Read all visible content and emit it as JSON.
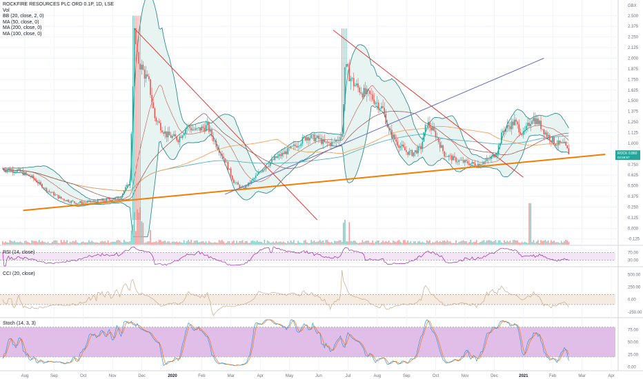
{
  "legend": {
    "title": "ROCKFIRE RESOURCES PLC ORD 0.1P, 1D, LSE",
    "vol": "Vol",
    "bb": "BB (20, close, 2, 0)",
    "ma50": "MA (50, close, 0)",
    "ma200": "MA (200, close, 0)",
    "ma100": "MA (100, close, 0)"
  },
  "currency": "GBX",
  "last_price": {
    "symbol": "ROCK",
    "value": "0.860",
    "countdown": "02:59:57"
  },
  "indicators": {
    "rsi": "RSI (14, close)",
    "cci": "CCI (20, close)",
    "stoch": "Stoch (14, 3, 3)"
  },
  "colors": {
    "up": "#26a69a",
    "down": "#ef5350",
    "bb_fill": "#e8f4f2",
    "bb_line": "#2e8b8b",
    "ma50": "#8b4e4e",
    "ma100": "#f5a35b",
    "ma200": "#4fb5c4",
    "trend_orange": "#f57c00",
    "trend_red": "#e53935",
    "trend_blue": "#5c6bc0",
    "rsi_fill": "#f3e5f5",
    "rsi_line": "#9c27b0",
    "cci_fill": "#f5ebe0",
    "cci_line": "#c8a98a",
    "stoch_fill": "#e1bee7",
    "stoch_k": "#2196f3",
    "stoch_d": "#ff6d00"
  },
  "chart_data": [
    {
      "type": "candlestick",
      "title": "ROCKFIRE RESOURCES PLC ORD 0.1P, 1D, LSE",
      "ylabel": "GBX",
      "ylim": [
        -0.2,
        2.62
      ],
      "y_ticks": [
        "2.500",
        "2.375",
        "2.250",
        "2.125",
        "2.000",
        "1.875",
        "1.750",
        "1.625",
        "1.500",
        "1.375",
        "1.250",
        "1.125",
        "1.000",
        "0.875",
        "0.750",
        "0.625",
        "0.500",
        "0.375",
        "0.250",
        "0.125",
        "0.000",
        "-0.125"
      ],
      "x_ticks": [
        "Aug",
        "Sep",
        "Oct",
        "Nov",
        "Dec",
        "2020",
        "Feb",
        "Mar",
        "Apr",
        "May",
        "Jun",
        "Jul",
        "Aug",
        "Sep",
        "Oct",
        "Nov",
        "Dec",
        "2021",
        "Feb",
        "Mar",
        "Apr"
      ],
      "x_ticks_bold": [
        "2020",
        "2021"
      ],
      "close_anchors": [
        {
          "month": 0.0,
          "value": 0.7
        },
        {
          "month": 0.5,
          "value": 0.68
        },
        {
          "month": 1.0,
          "value": 0.6
        },
        {
          "month": 1.5,
          "value": 0.45
        },
        {
          "month": 2.0,
          "value": 0.35
        },
        {
          "month": 2.5,
          "value": 0.3
        },
        {
          "month": 3.0,
          "value": 0.31
        },
        {
          "month": 3.5,
          "value": 0.33
        },
        {
          "month": 4.0,
          "value": 0.36
        },
        {
          "month": 4.35,
          "value": 0.55
        },
        {
          "month": 4.5,
          "value": 2.3
        },
        {
          "month": 4.6,
          "value": 2.0
        },
        {
          "month": 5.0,
          "value": 1.7
        },
        {
          "month": 5.2,
          "value": 1.3
        },
        {
          "month": 5.6,
          "value": 1.1
        },
        {
          "month": 6.0,
          "value": 1.05
        },
        {
          "month": 6.3,
          "value": 1.2
        },
        {
          "month": 6.6,
          "value": 1.15
        },
        {
          "month": 7.0,
          "value": 1.2
        },
        {
          "month": 7.2,
          "value": 1.05
        },
        {
          "month": 7.6,
          "value": 0.8
        },
        {
          "month": 7.9,
          "value": 0.55
        },
        {
          "month": 8.2,
          "value": 0.46
        },
        {
          "month": 8.5,
          "value": 0.55
        },
        {
          "month": 8.9,
          "value": 0.7
        },
        {
          "month": 9.3,
          "value": 0.82
        },
        {
          "month": 9.7,
          "value": 0.9
        },
        {
          "month": 10.0,
          "value": 0.97
        },
        {
          "month": 10.4,
          "value": 1.08
        },
        {
          "month": 10.8,
          "value": 1.05
        },
        {
          "month": 11.0,
          "value": 1.0
        },
        {
          "month": 11.3,
          "value": 1.0
        },
        {
          "month": 11.6,
          "value": 1.1
        },
        {
          "month": 11.7,
          "value": 1.9
        },
        {
          "month": 12.0,
          "value": 1.7
        },
        {
          "month": 12.3,
          "value": 1.6
        },
        {
          "month": 12.6,
          "value": 1.55
        },
        {
          "month": 13.0,
          "value": 1.4
        },
        {
          "month": 13.2,
          "value": 1.15
        },
        {
          "month": 13.5,
          "value": 1.0
        },
        {
          "month": 13.8,
          "value": 0.9
        },
        {
          "month": 14.0,
          "value": 0.88
        },
        {
          "month": 14.3,
          "value": 0.95
        },
        {
          "month": 14.5,
          "value": 1.25
        },
        {
          "month": 14.8,
          "value": 1.1
        },
        {
          "month": 15.1,
          "value": 0.87
        },
        {
          "month": 15.5,
          "value": 0.8
        },
        {
          "month": 15.9,
          "value": 0.77
        },
        {
          "month": 16.2,
          "value": 0.75
        },
        {
          "month": 16.6,
          "value": 0.8
        },
        {
          "month": 16.9,
          "value": 0.9
        },
        {
          "month": 17.1,
          "value": 1.15
        },
        {
          "month": 17.5,
          "value": 1.25
        },
        {
          "month": 17.8,
          "value": 1.1
        },
        {
          "month": 18.1,
          "value": 1.3
        },
        {
          "month": 18.3,
          "value": 1.25
        },
        {
          "month": 18.6,
          "value": 1.1
        },
        {
          "month": 18.9,
          "value": 1.0
        },
        {
          "month": 19.2,
          "value": 0.98
        },
        {
          "month": 19.4,
          "value": 0.86
        }
      ],
      "trendlines": [
        {
          "name": "orange-support",
          "from": {
            "month": 0.7,
            "value": 0.21
          },
          "to": {
            "month": 20.6,
            "value": 0.87
          }
        },
        {
          "name": "red-down-1",
          "from": {
            "month": 4.5,
            "value": 2.35
          },
          "to": {
            "month": 10.75,
            "value": 0.1
          }
        },
        {
          "name": "red-down-2",
          "from": {
            "month": 11.3,
            "value": 2.33
          },
          "to": {
            "month": 17.8,
            "value": 0.6
          }
        },
        {
          "name": "blue-up",
          "from": {
            "month": 7.6,
            "value": 0.4
          },
          "to": {
            "month": 18.5,
            "value": 2.0
          }
        }
      ]
    },
    {
      "type": "line",
      "title": "RSI (14, close)",
      "y_ticks": [
        "70.00",
        "30.00"
      ],
      "band": [
        30,
        70
      ]
    },
    {
      "type": "line",
      "title": "CCI (20, close)",
      "y_ticks": [
        "500.00",
        "250.00",
        "0.00",
        "-250.00"
      ],
      "band": [
        -100,
        100
      ]
    },
    {
      "type": "line",
      "title": "Stoch (14, 3, 3)",
      "y_ticks": [
        "75.00",
        "50.00",
        "25.00",
        "0.00"
      ],
      "band": [
        20,
        80
      ]
    }
  ]
}
